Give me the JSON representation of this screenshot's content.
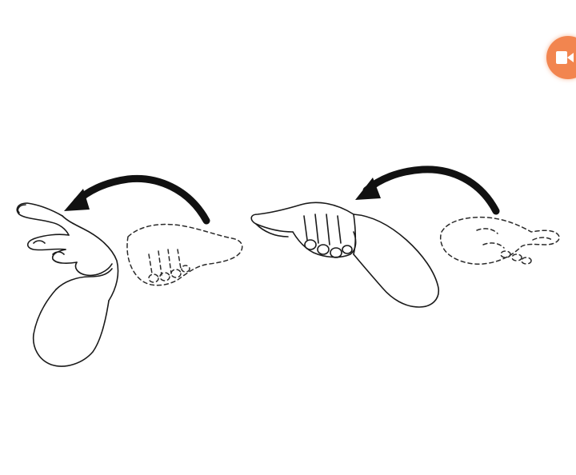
{
  "illustration": {
    "description_kind": "sign-language-gesture",
    "frames": [
      {
        "name": "left-gesture",
        "ghost_start": "palm-down-right",
        "final": "palm-up-left"
      },
      {
        "name": "right-gesture",
        "ghost_start": "palm-up-right",
        "final": "palm-down-left"
      }
    ],
    "motion": "arc-leftward"
  },
  "video_button": {
    "icon": "video-camera-icon",
    "color": "#f2854f"
  },
  "colors": {
    "background": "#ffffff",
    "ink": "#1a1a1a",
    "accent": "#f2854f"
  }
}
